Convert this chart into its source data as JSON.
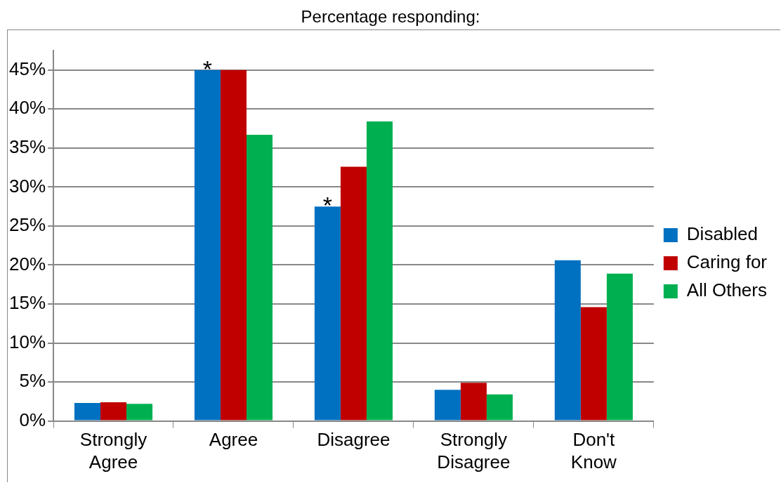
{
  "chart_data": {
    "type": "bar",
    "title": "Percentage responding:",
    "categories": [
      "Strongly Agree",
      "Agree",
      "Disagree",
      "Strongly Disagree",
      "Don't Know"
    ],
    "series": [
      {
        "name": "Disabled",
        "color": "#0070c0",
        "values": [
          2.3,
          45,
          27.5,
          4.0,
          20.6
        ],
        "value_labels": [
          null,
          "*",
          "*",
          null,
          null
        ]
      },
      {
        "name": "Caring for",
        "color": "#c00000",
        "values": [
          2.4,
          45,
          32.6,
          4.9,
          14.6
        ]
      },
      {
        "name": "All Others",
        "color": "#00b050",
        "values": [
          2.2,
          36.7,
          38.4,
          3.4,
          18.9
        ]
      }
    ],
    "ylim": [
      0,
      47.5
    ],
    "yticks": [
      {
        "value": 0,
        "label": "0%"
      },
      {
        "value": 5,
        "label": "5%"
      },
      {
        "value": 10,
        "label": "10%"
      },
      {
        "value": 15,
        "label": "15%"
      },
      {
        "value": 20,
        "label": "20%"
      },
      {
        "value": 25,
        "label": "25%"
      },
      {
        "value": 30,
        "label": "30%"
      },
      {
        "value": 35,
        "label": "35%"
      },
      {
        "value": 40,
        "label": "40%"
      },
      {
        "value": 45,
        "label": "45%"
      }
    ],
    "grid": "y",
    "legend": "right"
  }
}
